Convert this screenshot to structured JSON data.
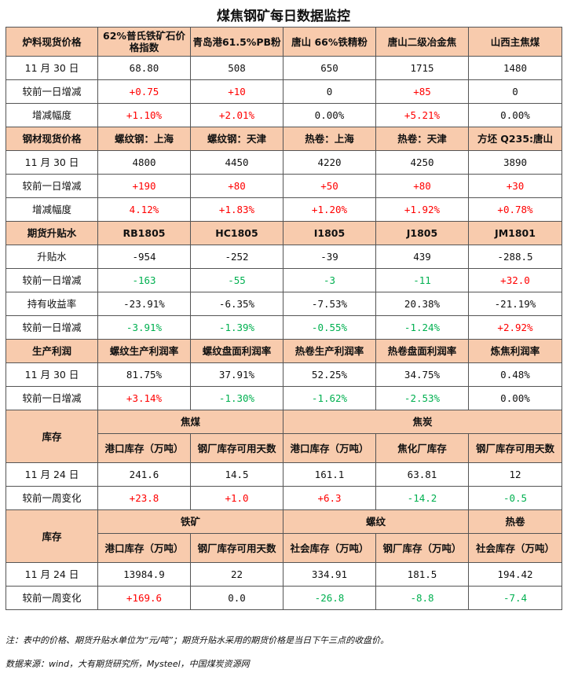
{
  "title": "煤焦钢矿每日数据监控",
  "sections": {
    "raw": {
      "header": [
        "炉料现货价格",
        "62%普氏铁矿石价格指数",
        "青岛港61.5%PB粉",
        "唐山 66%铁精粉",
        "唐山二级冶金焦",
        "山西主焦煤"
      ],
      "rows": [
        {
          "label": "11 月 30 日",
          "cells": [
            "68.80",
            "508",
            "650",
            "1715",
            "1480"
          ]
        },
        {
          "label": "较前一日增减",
          "cells": [
            "+0.75",
            "+10",
            "0",
            "+85",
            "0"
          ]
        },
        {
          "label": "增减幅度",
          "cells": [
            "+1.10%",
            "+2.01%",
            "0.00%",
            "+5.21%",
            "0.00%"
          ]
        }
      ]
    },
    "steel": {
      "header": [
        "钢材现货价格",
        "螺纹钢：上海",
        "螺纹钢：天津",
        "热卷：上海",
        "热卷：天津",
        "方坯 Q235:唐山"
      ],
      "rows": [
        {
          "label": "11 月 30 日",
          "cells": [
            "4800",
            "4450",
            "4220",
            "4250",
            "3890"
          ]
        },
        {
          "label": "较前一日增减",
          "cells": [
            "+190",
            "+80",
            "+50",
            "+80",
            "+30"
          ]
        },
        {
          "label": "增减幅度",
          "cells": [
            "4.12%",
            "+1.83%",
            "+1.20%",
            "+1.92%",
            "+0.78%"
          ]
        }
      ]
    },
    "futures": {
      "header": [
        "期货升贴水",
        "RB1805",
        "HC1805",
        "I1805",
        "J1805",
        "JM1801"
      ],
      "rows": [
        {
          "label": "升贴水",
          "cells": [
            "-954",
            "-252",
            "-39",
            "439",
            "-288.5"
          ]
        },
        {
          "label": "较前一日增减",
          "cells": [
            "-163",
            "-55",
            "-3",
            "-11",
            "+32.0"
          ]
        },
        {
          "label": "持有收益率",
          "cells": [
            "-23.91%",
            "-6.35%",
            "-7.53%",
            "20.38%",
            "-21.19%"
          ]
        },
        {
          "label": "较前一日增减",
          "cells": [
            "-3.91%",
            "-1.39%",
            "-0.55%",
            "-1.24%",
            "+2.92%"
          ]
        }
      ]
    },
    "profit": {
      "header": [
        "生产利润",
        "螺纹生产利润率",
        "螺纹盘面利润率",
        "热卷生产利润率",
        "热卷盘面利润率",
        "炼焦利润率"
      ],
      "rows": [
        {
          "label": "11 月 30 日",
          "cells": [
            "81.75%",
            "37.91%",
            "52.25%",
            "34.75%",
            "0.48%"
          ]
        },
        {
          "label": "较前一日增减",
          "cells": [
            "+3.14%",
            "-1.30%",
            "-1.62%",
            "-2.53%",
            "0.00%"
          ]
        }
      ]
    },
    "inventory1": {
      "label": "库存",
      "groups": [
        "焦煤",
        "焦炭"
      ],
      "subheader": [
        "港口库存（万吨）",
        "钢厂库存可用天数",
        "港口库存（万吨）",
        "焦化厂库存",
        "钢厂库存可用天数"
      ],
      "rows": [
        {
          "label": "11 月 24 日",
          "cells": [
            "241.6",
            "14.5",
            "161.1",
            "63.81",
            "12"
          ]
        },
        {
          "label": "较前一周变化",
          "cells": [
            "+23.8",
            "+1.0",
            "+6.3",
            "-14.2",
            "-0.5"
          ]
        }
      ]
    },
    "inventory2": {
      "label": "库存",
      "groups": [
        "铁矿",
        "螺纹",
        "热卷"
      ],
      "subheader": [
        "港口库存（万吨）",
        "钢厂库存可用天数",
        "社会库存（万吨）",
        "钢厂库存（万吨）",
        "社会库存（万吨）"
      ],
      "rows": [
        {
          "label": "11 月 24 日",
          "cells": [
            "13984.9",
            "22",
            "334.91",
            "181.5",
            "194.42"
          ]
        },
        {
          "label": "较前一周变化",
          "cells": [
            "+169.6",
            "0.0",
            "-26.8",
            "-8.8",
            "-7.4"
          ]
        }
      ]
    }
  },
  "colors": {
    "header_bg": "#f8cbad",
    "up": "#ff0000",
    "down": "#00b050"
  },
  "notes": {
    "note": "注：表中的价格、期货升贴水单位为“元/吨”；期货升贴水采用的期货价格是当日下午三点的收盘价。",
    "source": "数据来源：wind，大有期货研究所，Mysteel，中国煤炭资源网"
  }
}
